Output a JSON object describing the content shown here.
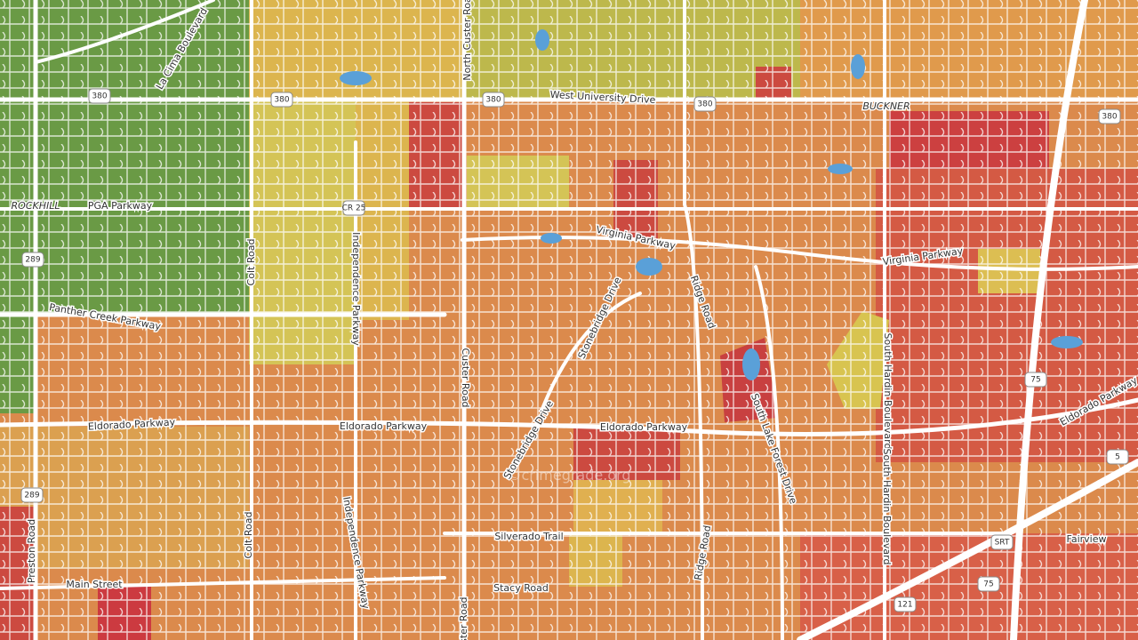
{
  "map": {
    "labels": [
      "La Cima Boulevard",
      "West University Drive",
      "BUCKNER",
      "North Custer Road",
      "ROCKHILL",
      "PGA Parkway",
      "Virginia Parkway",
      "Virginia Parkway",
      "Colt Road",
      "Independence Parkway",
      "Panther Creek Parkway",
      "Custer Road",
      "Stonebridge Drive",
      "Ridge Road",
      "Eldorado Parkway",
      "Eldorado Parkway",
      "Eldorado Parkway",
      "Eldorado Parkway",
      "Stonebridge Drive",
      "South Lake Forest Drive",
      "South Hardin Boulevard",
      "South Hardin Boulevard",
      "Colt Road",
      "Independence Parkway",
      "Silverado Trail",
      "Preston Road",
      "Main Street",
      "Stacy Road",
      "Ridge Road",
      "Custer Road"
    ],
    "place": "Fairview",
    "shields": [
      "380",
      "380",
      "380",
      "380",
      "380",
      "289",
      "289",
      "CR 25",
      "75",
      "75",
      "5",
      "121",
      "SRT"
    ],
    "watermark": "©crimegrade.org"
  }
}
